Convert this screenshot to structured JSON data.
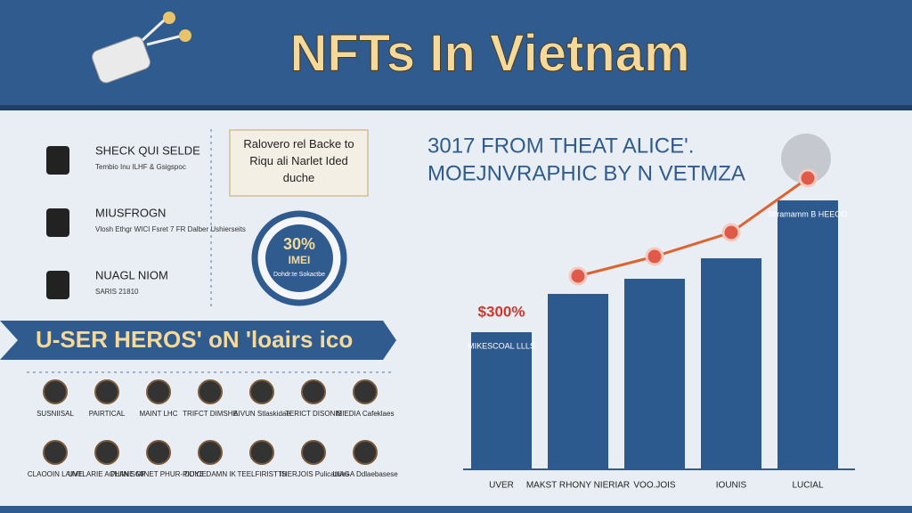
{
  "header": {
    "title": "NFTs In Vietnam"
  },
  "features": [
    {
      "title": "SHECK QUI SELDE",
      "text": "Tembio Inu ILHF & Gsigspoc"
    },
    {
      "title": "MIUSFROGN",
      "text": "Vlosh Ethgr WICI Fsret 7 FR Dalber Ushierseits"
    },
    {
      "title": "NUAGL NIOM",
      "text": "SARIS 21810"
    }
  ],
  "callout": {
    "text": "Ralovero rel Backe to Riqu ali Narlet Ided duche"
  },
  "badge": {
    "value": "30%",
    "label": "IMEI",
    "text": "Dohdr:te Sokactbe"
  },
  "banner": {
    "title": "U-SER HEROS' oN 'loairs ico"
  },
  "icons": [
    "SUSNIISAL",
    "PAIRTICAL",
    "MAINT LHC",
    "TRIFCT DIMSHE",
    "AIVUN Stlaskidae",
    "TERICT DISONIS",
    "MIEDIA Cafeklaes",
    "CLAOOIN LAIME",
    "UVTLARIE ACHIIN SGP",
    "PLANE MINET PHUR-PIDICE",
    "DUYE DAMN IK",
    "TEELFIRIST IS",
    "THERJOIS Pulicatsies",
    "UIAGA Ddlaebasese"
  ],
  "chart_data": {
    "type": "bar",
    "title": "3017 FROM THEAT ALICE'.",
    "subtitle": "MOEJNVRAPHIC BY N VETMZA",
    "categories": [
      "UVER",
      "MAKST RHONY NIERIAR",
      "VOO.JOIS",
      "IOUNIS",
      "LUCIAL"
    ],
    "series": [
      {
        "name": "Bars",
        "color": "#2c5a8e",
        "values": [
          154,
          197,
          214,
          237,
          302
        ],
        "value_labels": [
          "MIKESCOAL LLLS",
          null,
          null,
          null,
          "Nrramamm B HEEOO"
        ]
      },
      {
        "name": "Trend",
        "color": "#e0622f",
        "type": "line",
        "values": [
          null,
          217,
          239,
          266,
          327
        ]
      }
    ],
    "annotation": "$300%",
    "ylim": [
      0,
      330
    ]
  }
}
